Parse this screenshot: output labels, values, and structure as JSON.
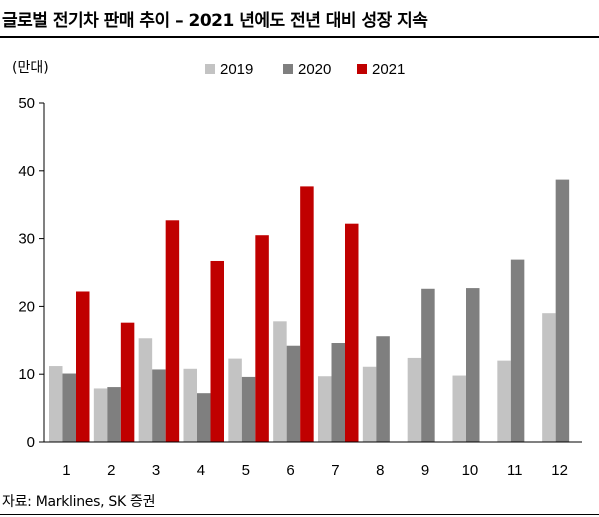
{
  "title": "글로벌 전기차 판매 추이 – 2021 년에도 전년 대비 성장 지속",
  "source": "자료: Marklines, SK 증권",
  "colors": {
    "2019": "#c3c3c3",
    "2020": "#7f7f7f",
    "2021": "#c00000"
  },
  "chart_data": {
    "type": "bar",
    "ylabel": "(만대)",
    "ylim": [
      0,
      50
    ],
    "yticks": [
      0,
      10,
      20,
      30,
      40,
      50
    ],
    "grid": false,
    "legend": "top-center",
    "categories": [
      "1",
      "2",
      "3",
      "4",
      "5",
      "6",
      "7",
      "8",
      "9",
      "10",
      "11",
      "12"
    ],
    "series": [
      {
        "name": "2019",
        "values": [
          11.2,
          7.9,
          15.3,
          10.8,
          12.3,
          17.8,
          9.7,
          11.1,
          12.4,
          9.8,
          12.0,
          19.0
        ]
      },
      {
        "name": "2020",
        "values": [
          10.1,
          8.1,
          10.7,
          7.2,
          9.6,
          14.2,
          14.6,
          15.6,
          22.6,
          22.7,
          26.9,
          38.7
        ]
      },
      {
        "name": "2021",
        "values": [
          22.2,
          17.6,
          32.7,
          26.7,
          30.5,
          37.7,
          32.2,
          null,
          null,
          null,
          null,
          null
        ]
      }
    ]
  }
}
